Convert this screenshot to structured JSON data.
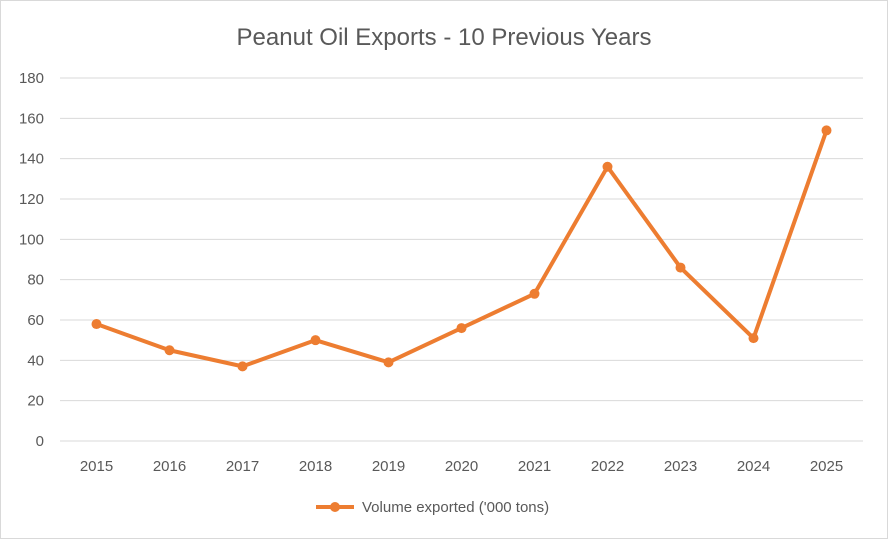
{
  "chart_data": {
    "type": "line",
    "title": "Peanut Oil Exports - 10 Previous Years",
    "xlabel": "",
    "ylabel": "",
    "categories": [
      "2015",
      "2016",
      "2017",
      "2018",
      "2019",
      "2020",
      "2021",
      "2022",
      "2023",
      "2024",
      "2025"
    ],
    "series": [
      {
        "name": "Volume exported ('000 tons)",
        "values": [
          58,
          45,
          37,
          50,
          39,
          56,
          73,
          136,
          86,
          51,
          154
        ],
        "color": "#ED7D31"
      }
    ],
    "ylim": [
      0,
      180
    ],
    "yticks": [
      "0",
      "20",
      "40",
      "60",
      "80",
      "100",
      "120",
      "140",
      "160",
      "180"
    ],
    "grid": true,
    "legend": "bottom",
    "gridColor": "#d9d9d9"
  }
}
